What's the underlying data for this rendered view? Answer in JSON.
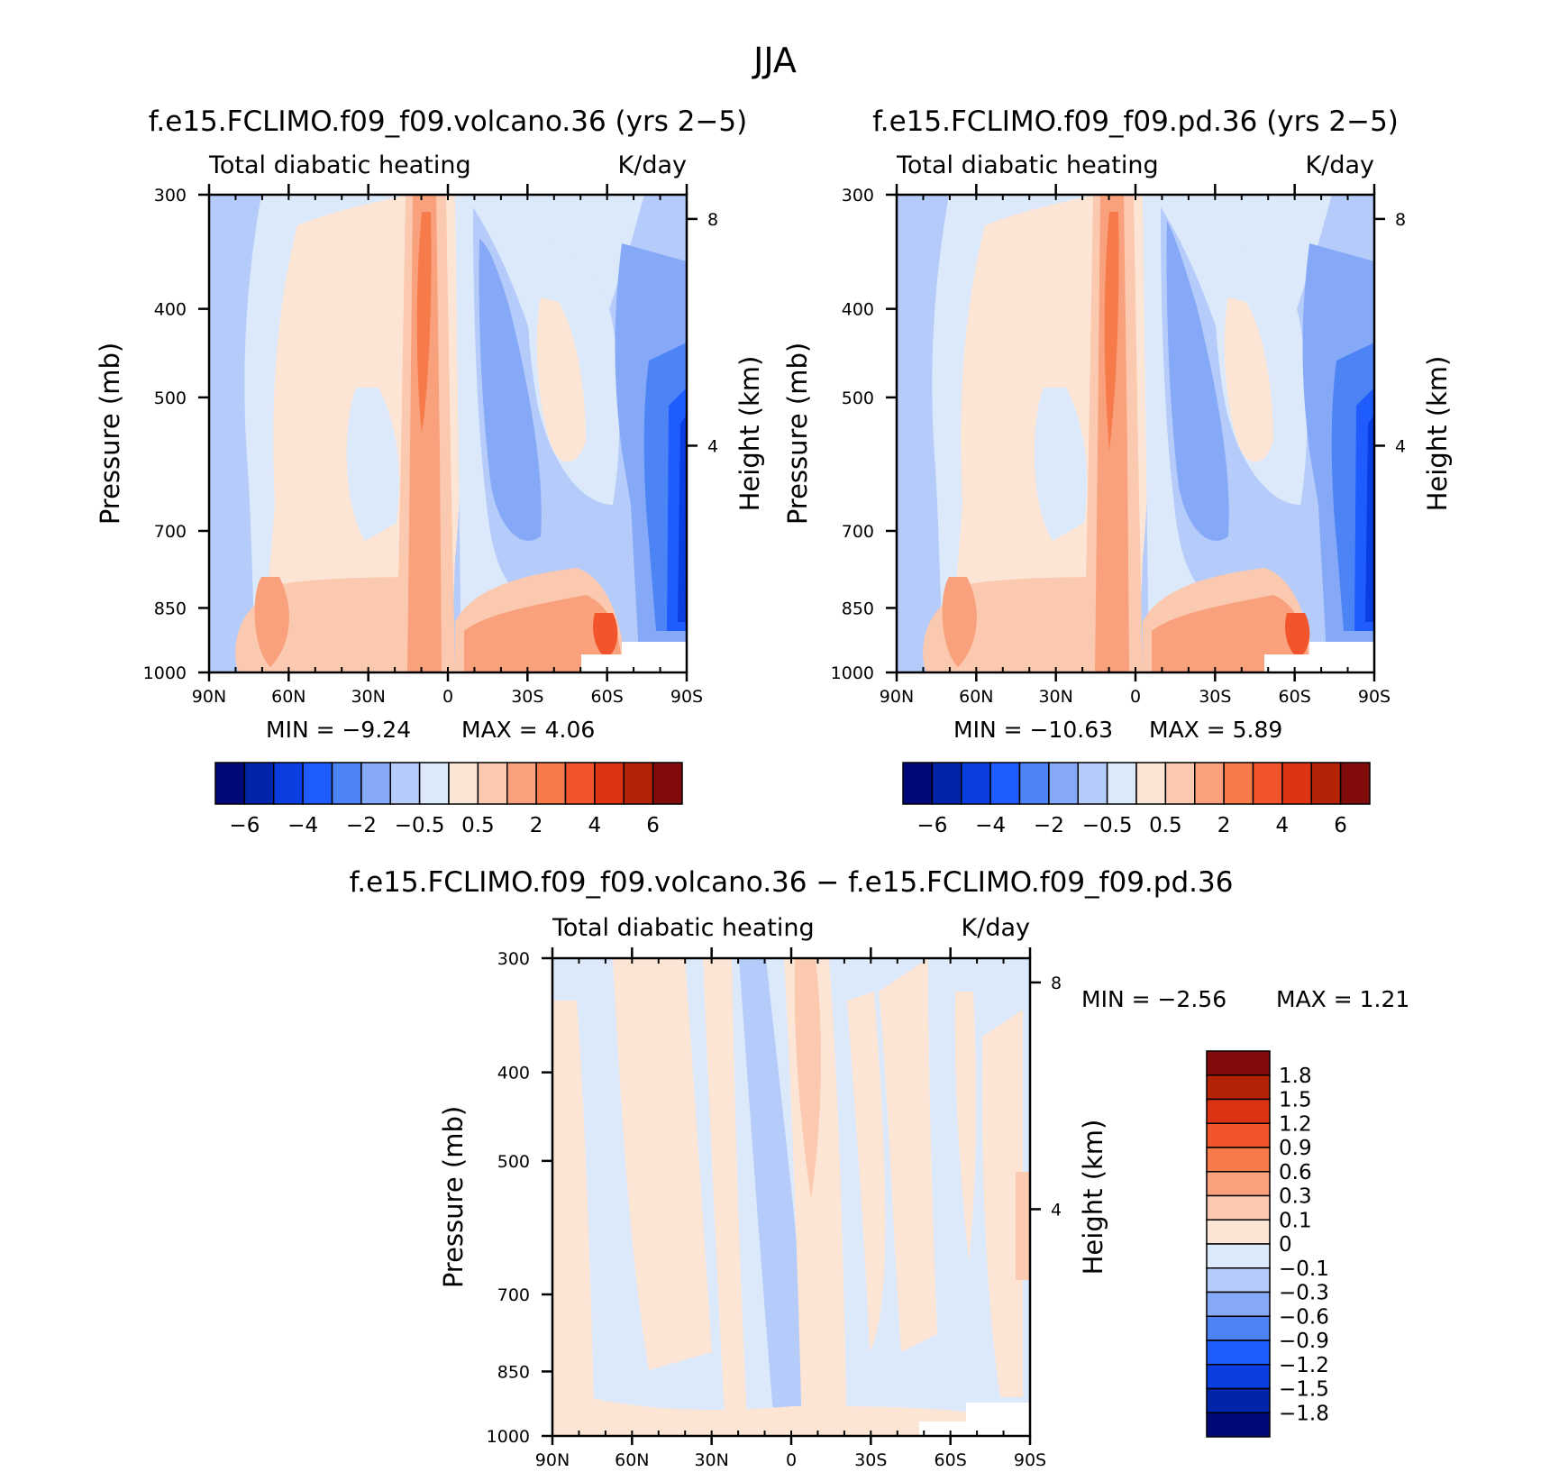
{
  "figure": {
    "title": "JJA"
  },
  "panels": [
    {
      "id": "volcano",
      "title": "f.e15.FCLIMO.f09_f09.volcano.36 (yrs 2−5)",
      "left_label": "Total diabatic heating",
      "right_label": "K/day",
      "min_text": "MIN  =    −9.24",
      "max_text": "MAX  =      4.06"
    },
    {
      "id": "pd",
      "title": "f.e15.FCLIMO.f09_f09.pd.36 (yrs 2−5)",
      "left_label": "Total diabatic heating",
      "right_label": "K/day",
      "min_text": "MIN  =  −10.63",
      "max_text": "MAX  =      5.89"
    },
    {
      "id": "diff",
      "title": "f.e15.FCLIMO.f09_f09.volcano.36 − f.e15.FCLIMO.f09_f09.pd.36",
      "left_label": "Total diabatic heating",
      "right_label": "K/day",
      "min_text": "MIN  =    −2.56",
      "max_text": "MAX  =     1.21"
    }
  ],
  "chart_data": [
    {
      "type": "contour",
      "panel": "volcano",
      "x_ticks": [
        "90N",
        "60N",
        "30N",
        "0",
        "30S",
        "60S",
        "90S"
      ],
      "y_ticks": [
        "300",
        "400",
        "500",
        "700",
        "850",
        "1000"
      ],
      "y_ticks_right": [
        "8",
        "4"
      ],
      "ylabel": "Pressure (mb)",
      "ylabel_right": "Height (km)",
      "ylim": [
        1000,
        300
      ],
      "min": -9.24,
      "max": 4.06,
      "colorbar_labels": [
        "−6",
        "−4",
        "−2",
        "−0.5",
        "0.5",
        "2",
        "4",
        "6"
      ]
    },
    {
      "type": "contour",
      "panel": "pd",
      "x_ticks": [
        "90N",
        "60N",
        "30N",
        "0",
        "30S",
        "60S",
        "90S"
      ],
      "y_ticks": [
        "300",
        "400",
        "500",
        "700",
        "850",
        "1000"
      ],
      "y_ticks_right": [
        "8",
        "4"
      ],
      "ylabel": "Pressure (mb)",
      "ylabel_right": "Height (km)",
      "ylim": [
        1000,
        300
      ],
      "min": -10.63,
      "max": 5.89,
      "colorbar_labels": [
        "−6",
        "−4",
        "−2",
        "−0.5",
        "0.5",
        "2",
        "4",
        "6"
      ]
    },
    {
      "type": "contour",
      "panel": "diff",
      "x_ticks": [
        "90N",
        "60N",
        "30N",
        "0",
        "30S",
        "60S",
        "90S"
      ],
      "y_ticks": [
        "300",
        "400",
        "500",
        "700",
        "850",
        "1000"
      ],
      "y_ticks_right": [
        "8",
        "4"
      ],
      "ylabel": "Pressure (mb)",
      "ylabel_right": "Height (km)",
      "ylim": [
        1000,
        300
      ],
      "min": -2.56,
      "max": 1.21,
      "colorbar_labels": [
        "1.8",
        "1.5",
        "1.2",
        "0.9",
        "0.6",
        "0.3",
        "0.1",
        "0",
        "−0.1",
        "−0.3",
        "−0.6",
        "−0.9",
        "−1.2",
        "−1.5",
        "−1.8"
      ]
    }
  ],
  "colors": {
    "levels": [
      "#00087a",
      "#0224a8",
      "#0a3ee0",
      "#1f5cff",
      "#4d84f5",
      "#86a9f7",
      "#b5cbf9",
      "#dbe9fb",
      "#fde5d6",
      "#fbc9b0",
      "#f8a17c",
      "#f77a4a",
      "#f2552b",
      "#dc3412",
      "#b52306",
      "#820b0b"
    ],
    "blue_mid": "#b5cbf9",
    "blue_light": "#dbe9fb",
    "red_light": "#fde5d6",
    "red_mid": "#fbc9b0"
  }
}
